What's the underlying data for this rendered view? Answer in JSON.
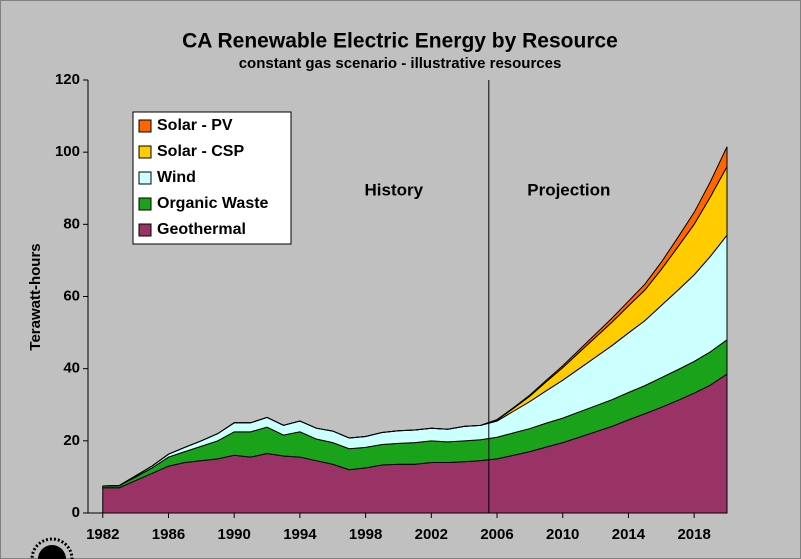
{
  "chart_data": {
    "type": "stacked_area",
    "title": "CA Renewable Electric Energy by Resource",
    "subtitle": "constant gas scenario - illustrative resources",
    "y_label": "Terawatt-hours",
    "annotations": [
      "History",
      "Projection"
    ],
    "divider_x": 2005.5,
    "x": [
      1982,
      1983,
      1984,
      1985,
      1986,
      1987,
      1988,
      1989,
      1990,
      1991,
      1992,
      1993,
      1994,
      1995,
      1996,
      1997,
      1998,
      1999,
      2000,
      2001,
      2002,
      2003,
      2004,
      2005,
      2006,
      2007,
      2008,
      2009,
      2010,
      2011,
      2012,
      2013,
      2014,
      2015,
      2016,
      2017,
      2018,
      2019,
      2020
    ],
    "series": [
      {
        "name": "Geothermal",
        "color": "#993366",
        "values": [
          7,
          7,
          9,
          11,
          13,
          14,
          14.5,
          15,
          16,
          15.5,
          16.5,
          15.8,
          15.5,
          14.5,
          13.5,
          12,
          12.5,
          13.3,
          13.5,
          13.5,
          14,
          14,
          14.2,
          14.5,
          15,
          16,
          17,
          18.3,
          19.5,
          21,
          22.5,
          24,
          25.8,
          27.5,
          29.3,
          31.2,
          33.2,
          35.5,
          38.5
        ]
      },
      {
        "name": "Organic Waste",
        "color": "#1aa31a",
        "values": [
          0.5,
          0.6,
          1,
          1.5,
          2.5,
          3,
          4,
          5,
          6.5,
          7,
          7.3,
          5.8,
          7,
          6,
          6,
          5.8,
          5.7,
          5.7,
          5.8,
          6,
          6,
          5.7,
          5.8,
          5.8,
          6,
          6.2,
          6.4,
          6.6,
          6.8,
          7,
          7.2,
          7.4,
          7.6,
          7.8,
          8.2,
          8.5,
          8.8,
          9.2,
          9.5
        ]
      },
      {
        "name": "Wind",
        "color": "#ccffff",
        "values": [
          0,
          0,
          0.3,
          0.5,
          0.8,
          1.2,
          1.5,
          2,
          2.5,
          2.5,
          2.7,
          2.7,
          3,
          3,
          3.2,
          3,
          3,
          3.3,
          3.5,
          3.5,
          3.5,
          3.5,
          4,
          4,
          4.5,
          6,
          7.5,
          9,
          10.5,
          12,
          13.5,
          15,
          16.5,
          18,
          20,
          22,
          24,
          26.5,
          29
        ]
      },
      {
        "name": "Solar - CSP",
        "color": "#ffcc00",
        "values": [
          0,
          0,
          0,
          0,
          0,
          0,
          0,
          0,
          0,
          0,
          0,
          0,
          0,
          0,
          0,
          0,
          0,
          0,
          0,
          0,
          0,
          0,
          0,
          0,
          0.3,
          0.8,
          1.5,
          2.5,
          3.5,
          4.5,
          5.5,
          6.5,
          7.5,
          8.5,
          10,
          12,
          14,
          16.5,
          19
        ]
      },
      {
        "name": "Solar - PV",
        "color": "#ff6600",
        "values": [
          0,
          0,
          0,
          0,
          0,
          0,
          0,
          0,
          0,
          0,
          0,
          0,
          0,
          0,
          0,
          0,
          0,
          0,
          0,
          0,
          0,
          0,
          0,
          0,
          0.1,
          0.2,
          0.3,
          0.4,
          0.5,
          0.7,
          0.9,
          1.1,
          1.3,
          1.6,
          2,
          2.6,
          3.3,
          4.2,
          5.5
        ]
      }
    ],
    "xlim": [
      1981.1,
      2020
    ],
    "xticks": [
      1982,
      1986,
      1990,
      1994,
      1998,
      2002,
      2006,
      2010,
      2014,
      2018
    ],
    "ylim": [
      0,
      120
    ],
    "yticks": [
      0,
      20,
      40,
      60,
      80,
      100,
      120
    ],
    "legend": "upper left"
  }
}
